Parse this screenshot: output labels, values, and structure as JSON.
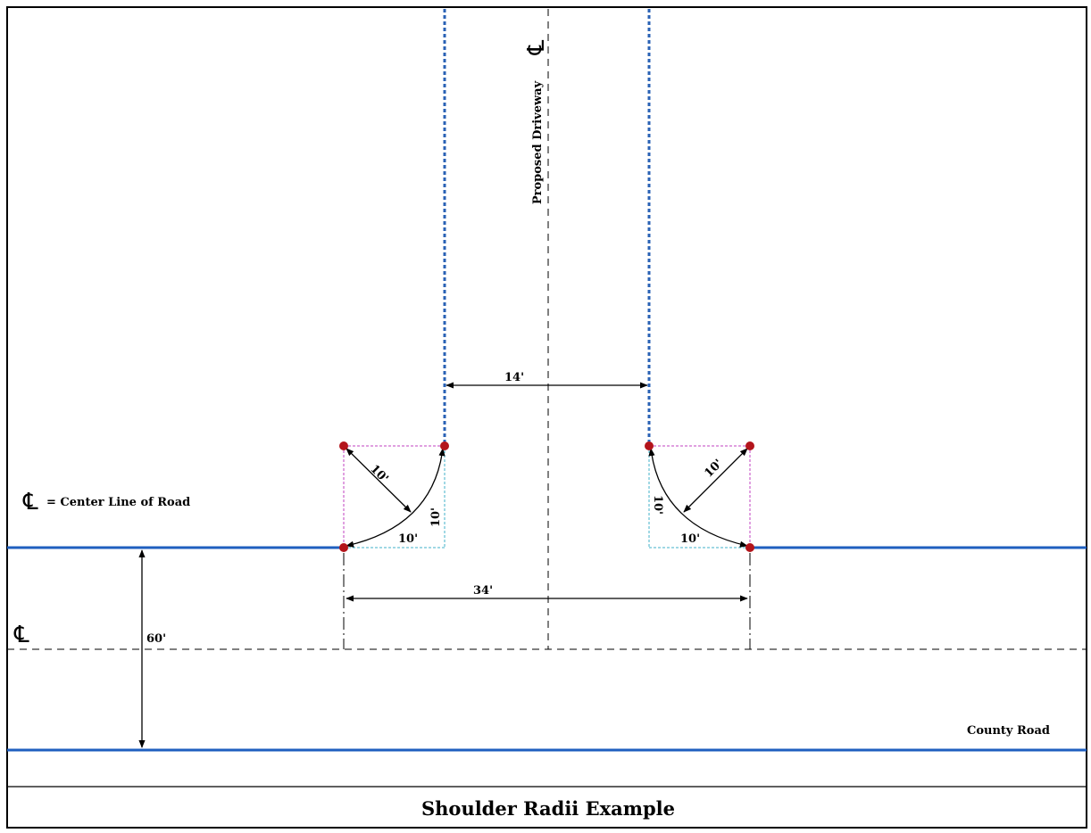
{
  "title": "Shoulder Radii Example",
  "labels": {
    "centerline_legend": "= Center Line of Road",
    "centerline_symbol": "℄",
    "driveway": "Proposed Driveway",
    "county_road": "County Road",
    "dim_driveway_width": "14'",
    "dim_throat_width": "34'",
    "dim_row_width": "60'",
    "dim_radius": "10'"
  },
  "colors": {
    "road_edge": "#1f5fbf",
    "driveway_edge": "#2a62b5",
    "radius_point": "#b3141b",
    "guide_magenta": "#c040c0",
    "guide_cyan": "#40b0c8",
    "line": "#000000"
  }
}
